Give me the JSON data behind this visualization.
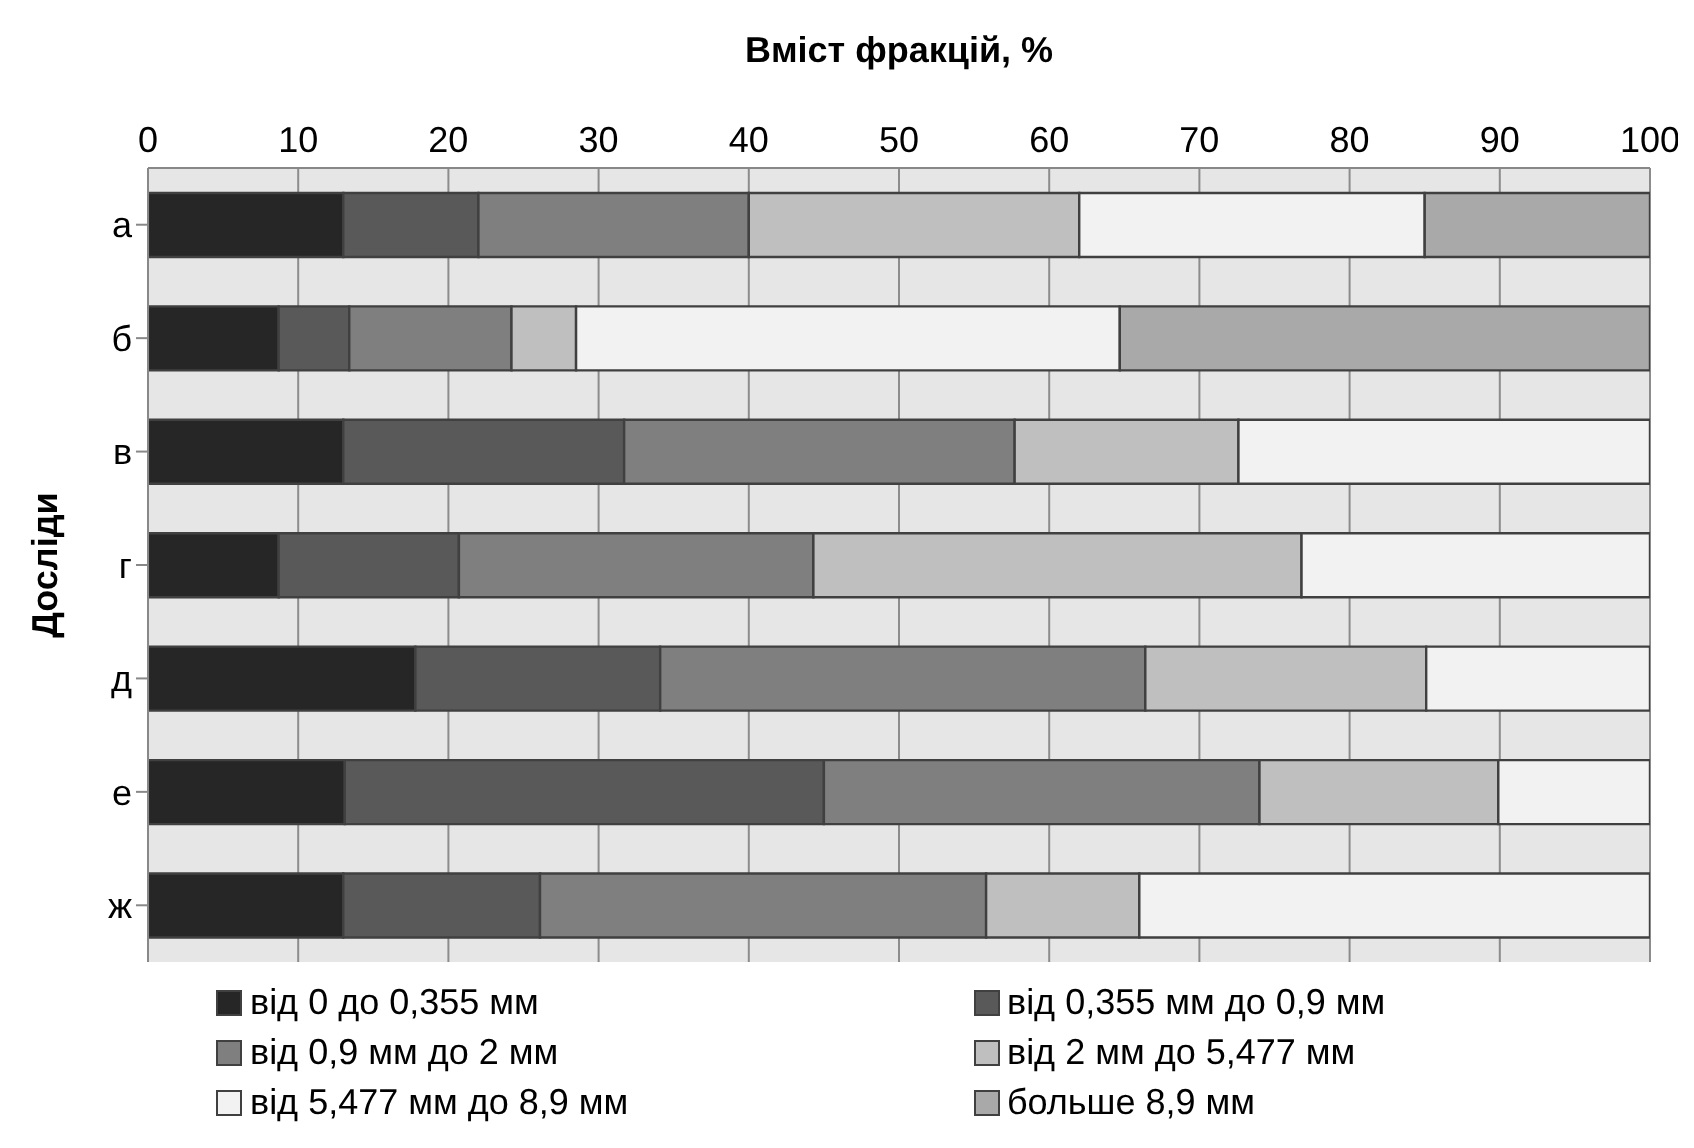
{
  "chart_data": {
    "type": "bar",
    "orientation": "horizontal",
    "stacked": true,
    "xlabel": "Вміст фракцій, %",
    "ylabel": "Досліди",
    "categories": [
      "а",
      "б",
      "в",
      "г",
      "д",
      "е",
      "ж"
    ],
    "series": [
      {
        "name": "від 0 до 0,355 мм",
        "color": "#262626",
        "values": [
          13,
          8.7,
          13,
          8.7,
          17.8,
          13.1,
          13
        ]
      },
      {
        "name": "від 0,355 мм до 0,9 мм",
        "color": "#595959",
        "values": [
          9,
          4.7,
          18.7,
          12,
          16.3,
          31.9,
          13.1
        ]
      },
      {
        "name": "від 0,9 мм до 2 мм",
        "color": "#7f7f7f",
        "values": [
          18,
          10.8,
          26,
          23.6,
          32.3,
          29,
          29.7
        ]
      },
      {
        "name": "від 2 мм до 5,477 мм",
        "color": "#bfbfbf",
        "values": [
          22,
          4.3,
          14.9,
          32.5,
          18.7,
          15.9,
          10.2
        ]
      },
      {
        "name": "від 5,477 мм до 8,9 мм",
        "color": "#f2f2f2",
        "values": [
          23,
          36.2,
          27.4,
          23.2,
          14.9,
          10.1,
          34
        ]
      },
      {
        "name": "больше 8,9 мм",
        "color": "#a9a9a9",
        "values": [
          15,
          35.3,
          null,
          null,
          null,
          null,
          null
        ]
      }
    ],
    "xlim": [
      0,
      100
    ],
    "xticks": [
      0,
      10,
      20,
      30,
      40,
      50,
      60,
      70,
      80,
      90,
      100
    ],
    "grid": "x",
    "legend": "bottom"
  }
}
